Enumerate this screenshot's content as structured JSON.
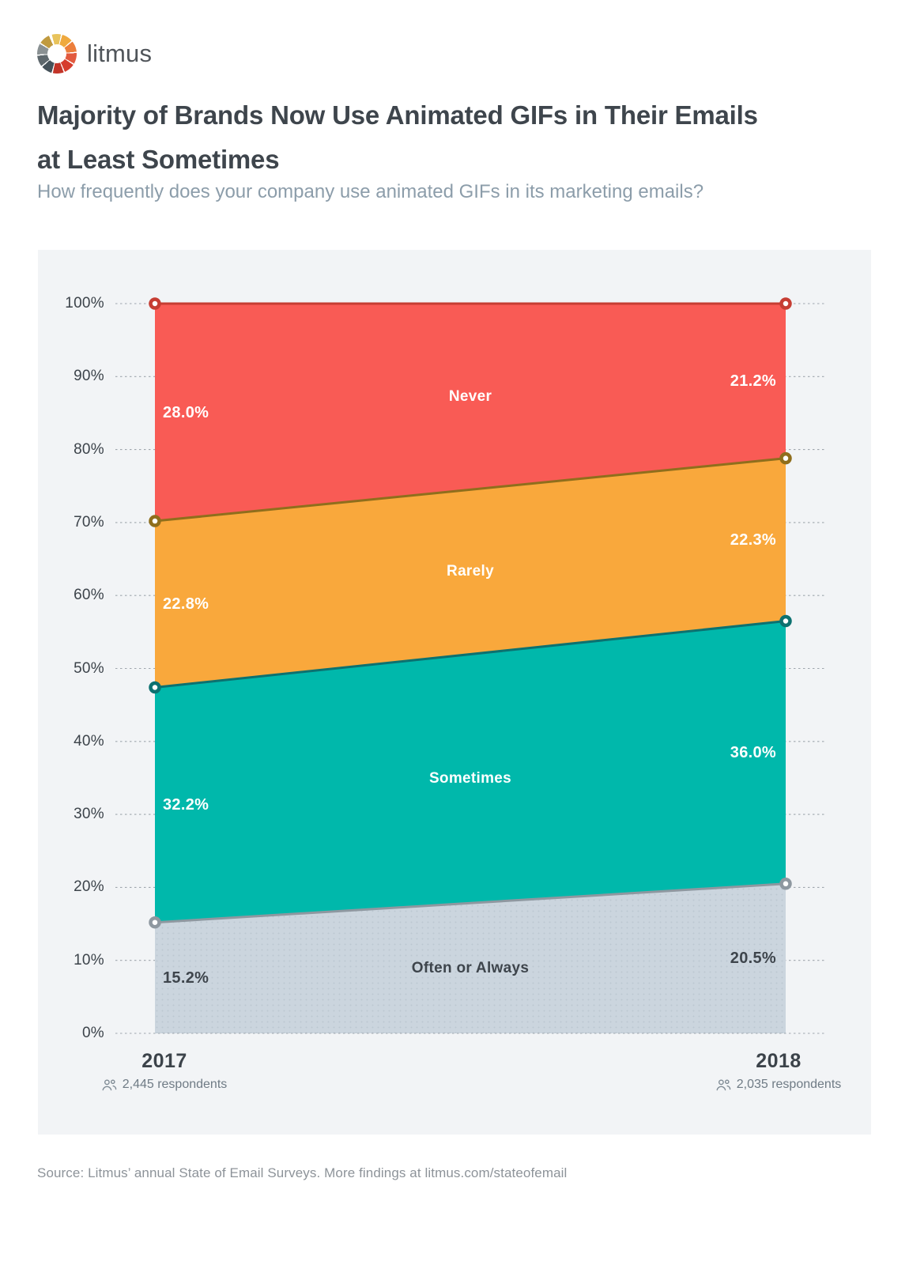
{
  "logo": {
    "wordmark": "litmus"
  },
  "header": {
    "title": "Majority of Brands Now Use Animated GIFs in Their Emails at Least Sometimes",
    "subtitle": "How frequently does your company use animated GIFs in its marketing emails?"
  },
  "chart_data": {
    "type": "area",
    "stacked": true,
    "x": [
      "2017",
      "2018"
    ],
    "x_axis": [
      {
        "year": "2017",
        "respondents": "2,445 respondents"
      },
      {
        "year": "2018",
        "respondents": "2,035 respondents"
      }
    ],
    "ylim": [
      0,
      100
    ],
    "yticks": [
      "0%",
      "10%",
      "20%",
      "30%",
      "40%",
      "50%",
      "60%",
      "70%",
      "80%",
      "90%",
      "100%"
    ],
    "grid": "dotted",
    "top_forced_to": 100,
    "series": [
      {
        "name": "Often or Always",
        "values": [
          15.2,
          20.5
        ],
        "value_labels": [
          "15.2%",
          "20.5%"
        ],
        "fill": "#CBD5DE",
        "line": "#8E98A0",
        "texture": "dots",
        "label_color": "#3E454C",
        "name_color": "#3E454C",
        "name_weight": "600"
      },
      {
        "name": "Sometimes",
        "values": [
          32.2,
          36.0
        ],
        "value_labels": [
          "32.2%",
          "36.0%"
        ],
        "fill": "#00B8AB",
        "line": "#0C7170"
      },
      {
        "name": "Rarely",
        "values": [
          22.8,
          22.3
        ],
        "value_labels": [
          "22.8%",
          "22.3%"
        ],
        "fill": "#F9A83C",
        "line": "#8F6E1C"
      },
      {
        "name": "Never",
        "values": [
          28.0,
          21.2
        ],
        "value_labels": [
          "28.0%",
          "21.2%"
        ],
        "fill": "#F95B55",
        "line": "#C63D33"
      }
    ]
  },
  "footer": {
    "source": "Source: Litmus’ annual State of Email Surveys. More findings at litmus.com/stateofemail"
  }
}
